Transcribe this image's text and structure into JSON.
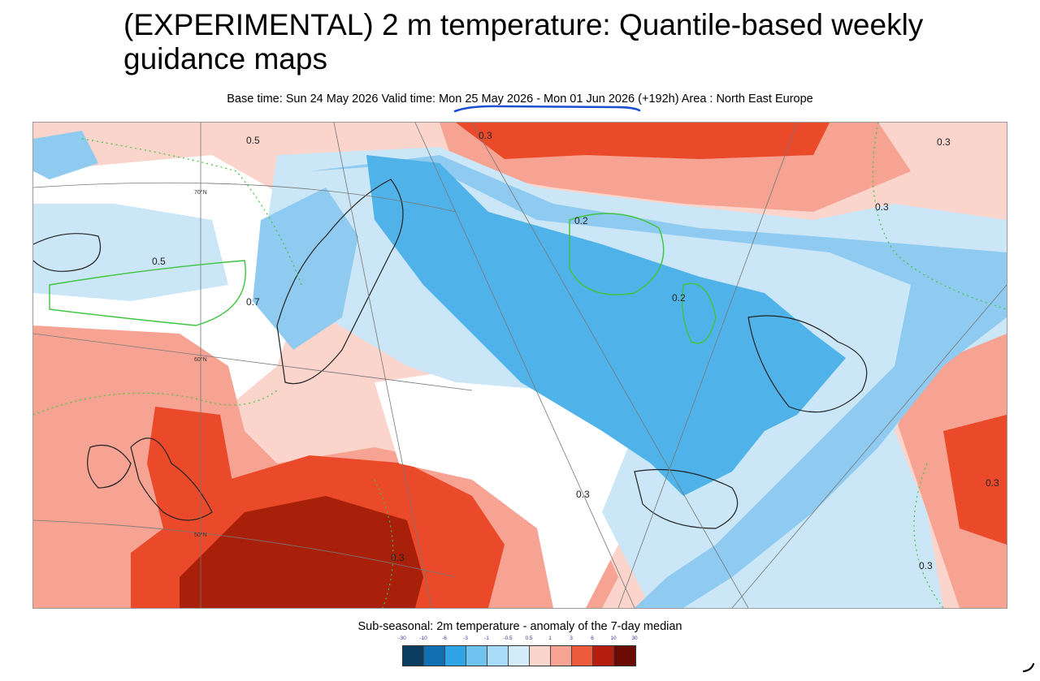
{
  "title": "(EXPERIMENTAL) 2 m temperature: Quantile-based weekly guidance maps",
  "base_time_label": "Base time: Sun 24 May 2026 Valid time: Mon 25 May 2026 - Mon 01 Jun 2026 (+192h) Area : North East Europe",
  "map": {
    "area": "North East Europe",
    "latitude_labels": [
      "70°N",
      "60°N",
      "50°N"
    ],
    "contour_labels": [
      "0.5",
      "0.5",
      "0.7",
      "0.3",
      "0.2",
      "0.2",
      "0.3",
      "0.3",
      "0.3",
      "0.3",
      "0.3",
      "0.3"
    ],
    "colors": {
      "deep_red": "#a8200a",
      "red": "#ea4a2a",
      "light_red": "#f6a393",
      "pale_red": "#fbd4cc",
      "pale_blue": "#cbe6f7",
      "light_blue": "#8fcbf0",
      "blue": "#4fb3ea",
      "contour_green": "#3ec43e"
    }
  },
  "legend": {
    "title": "Sub-seasonal: 2m temperature - anomaly of the 7-day median",
    "ticks": [
      "-30",
      "-10",
      "-6",
      "-3",
      "-1",
      "-0.5",
      "0.5",
      "1",
      "3",
      "6",
      "10",
      "30"
    ],
    "colors": [
      "#0b3d63",
      "#0f6fb0",
      "#2ea3e6",
      "#6ec3ef",
      "#a7dbf6",
      "#d3ecfa",
      "#ffffff",
      "#fbd4cc",
      "#f6a393",
      "#ee5a3c",
      "#b51d0c",
      "#6a0b05"
    ]
  }
}
